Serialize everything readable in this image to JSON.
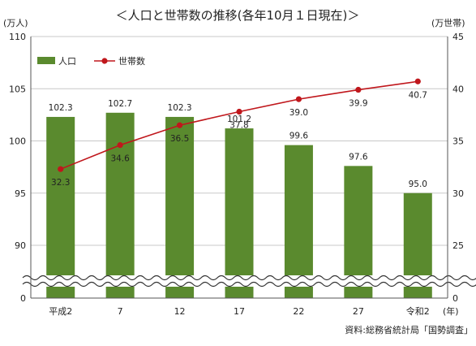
{
  "title": "＜人口と世帯数の推移(各年10月１日現在)＞",
  "source": "資料:総務省統計局「国勢調査」",
  "colors": {
    "bar": "#5a8a2e",
    "line": "#c0171c",
    "grid": "#c8c8c8",
    "axis": "#555555"
  },
  "chart_data": {
    "type": "bar",
    "categories": [
      "平成2",
      "7",
      "12",
      "17",
      "22",
      "27",
      "令和2"
    ],
    "x_unit": "(年)",
    "series": [
      {
        "name": "人口",
        "type": "bar",
        "axis": "left",
        "values": [
          102.3,
          102.7,
          102.3,
          101.2,
          99.6,
          97.6,
          95.0
        ],
        "labels": [
          "102.3",
          "102.7",
          "102.3",
          "101.2",
          "99.6",
          "97.6",
          "95.0"
        ]
      },
      {
        "name": "世帯数",
        "type": "line",
        "axis": "right",
        "values": [
          32.3,
          34.6,
          36.5,
          37.8,
          39.0,
          39.9,
          40.7
        ],
        "labels": [
          "32.3",
          "34.6",
          "36.5",
          "37.8",
          "39.0",
          "39.9",
          "40.7"
        ]
      }
    ],
    "left_axis": {
      "unit": "(万人)",
      "ticks": [
        "0",
        "90",
        "95",
        "100",
        "105",
        "110"
      ],
      "range": [
        90,
        110
      ],
      "broken": true
    },
    "right_axis": {
      "unit": "(万世帯)",
      "ticks": [
        "0",
        "25",
        "30",
        "35",
        "40",
        "45"
      ],
      "range": [
        25,
        45
      ],
      "broken": true
    },
    "legend": {
      "position": "top-left"
    },
    "grid": true
  }
}
